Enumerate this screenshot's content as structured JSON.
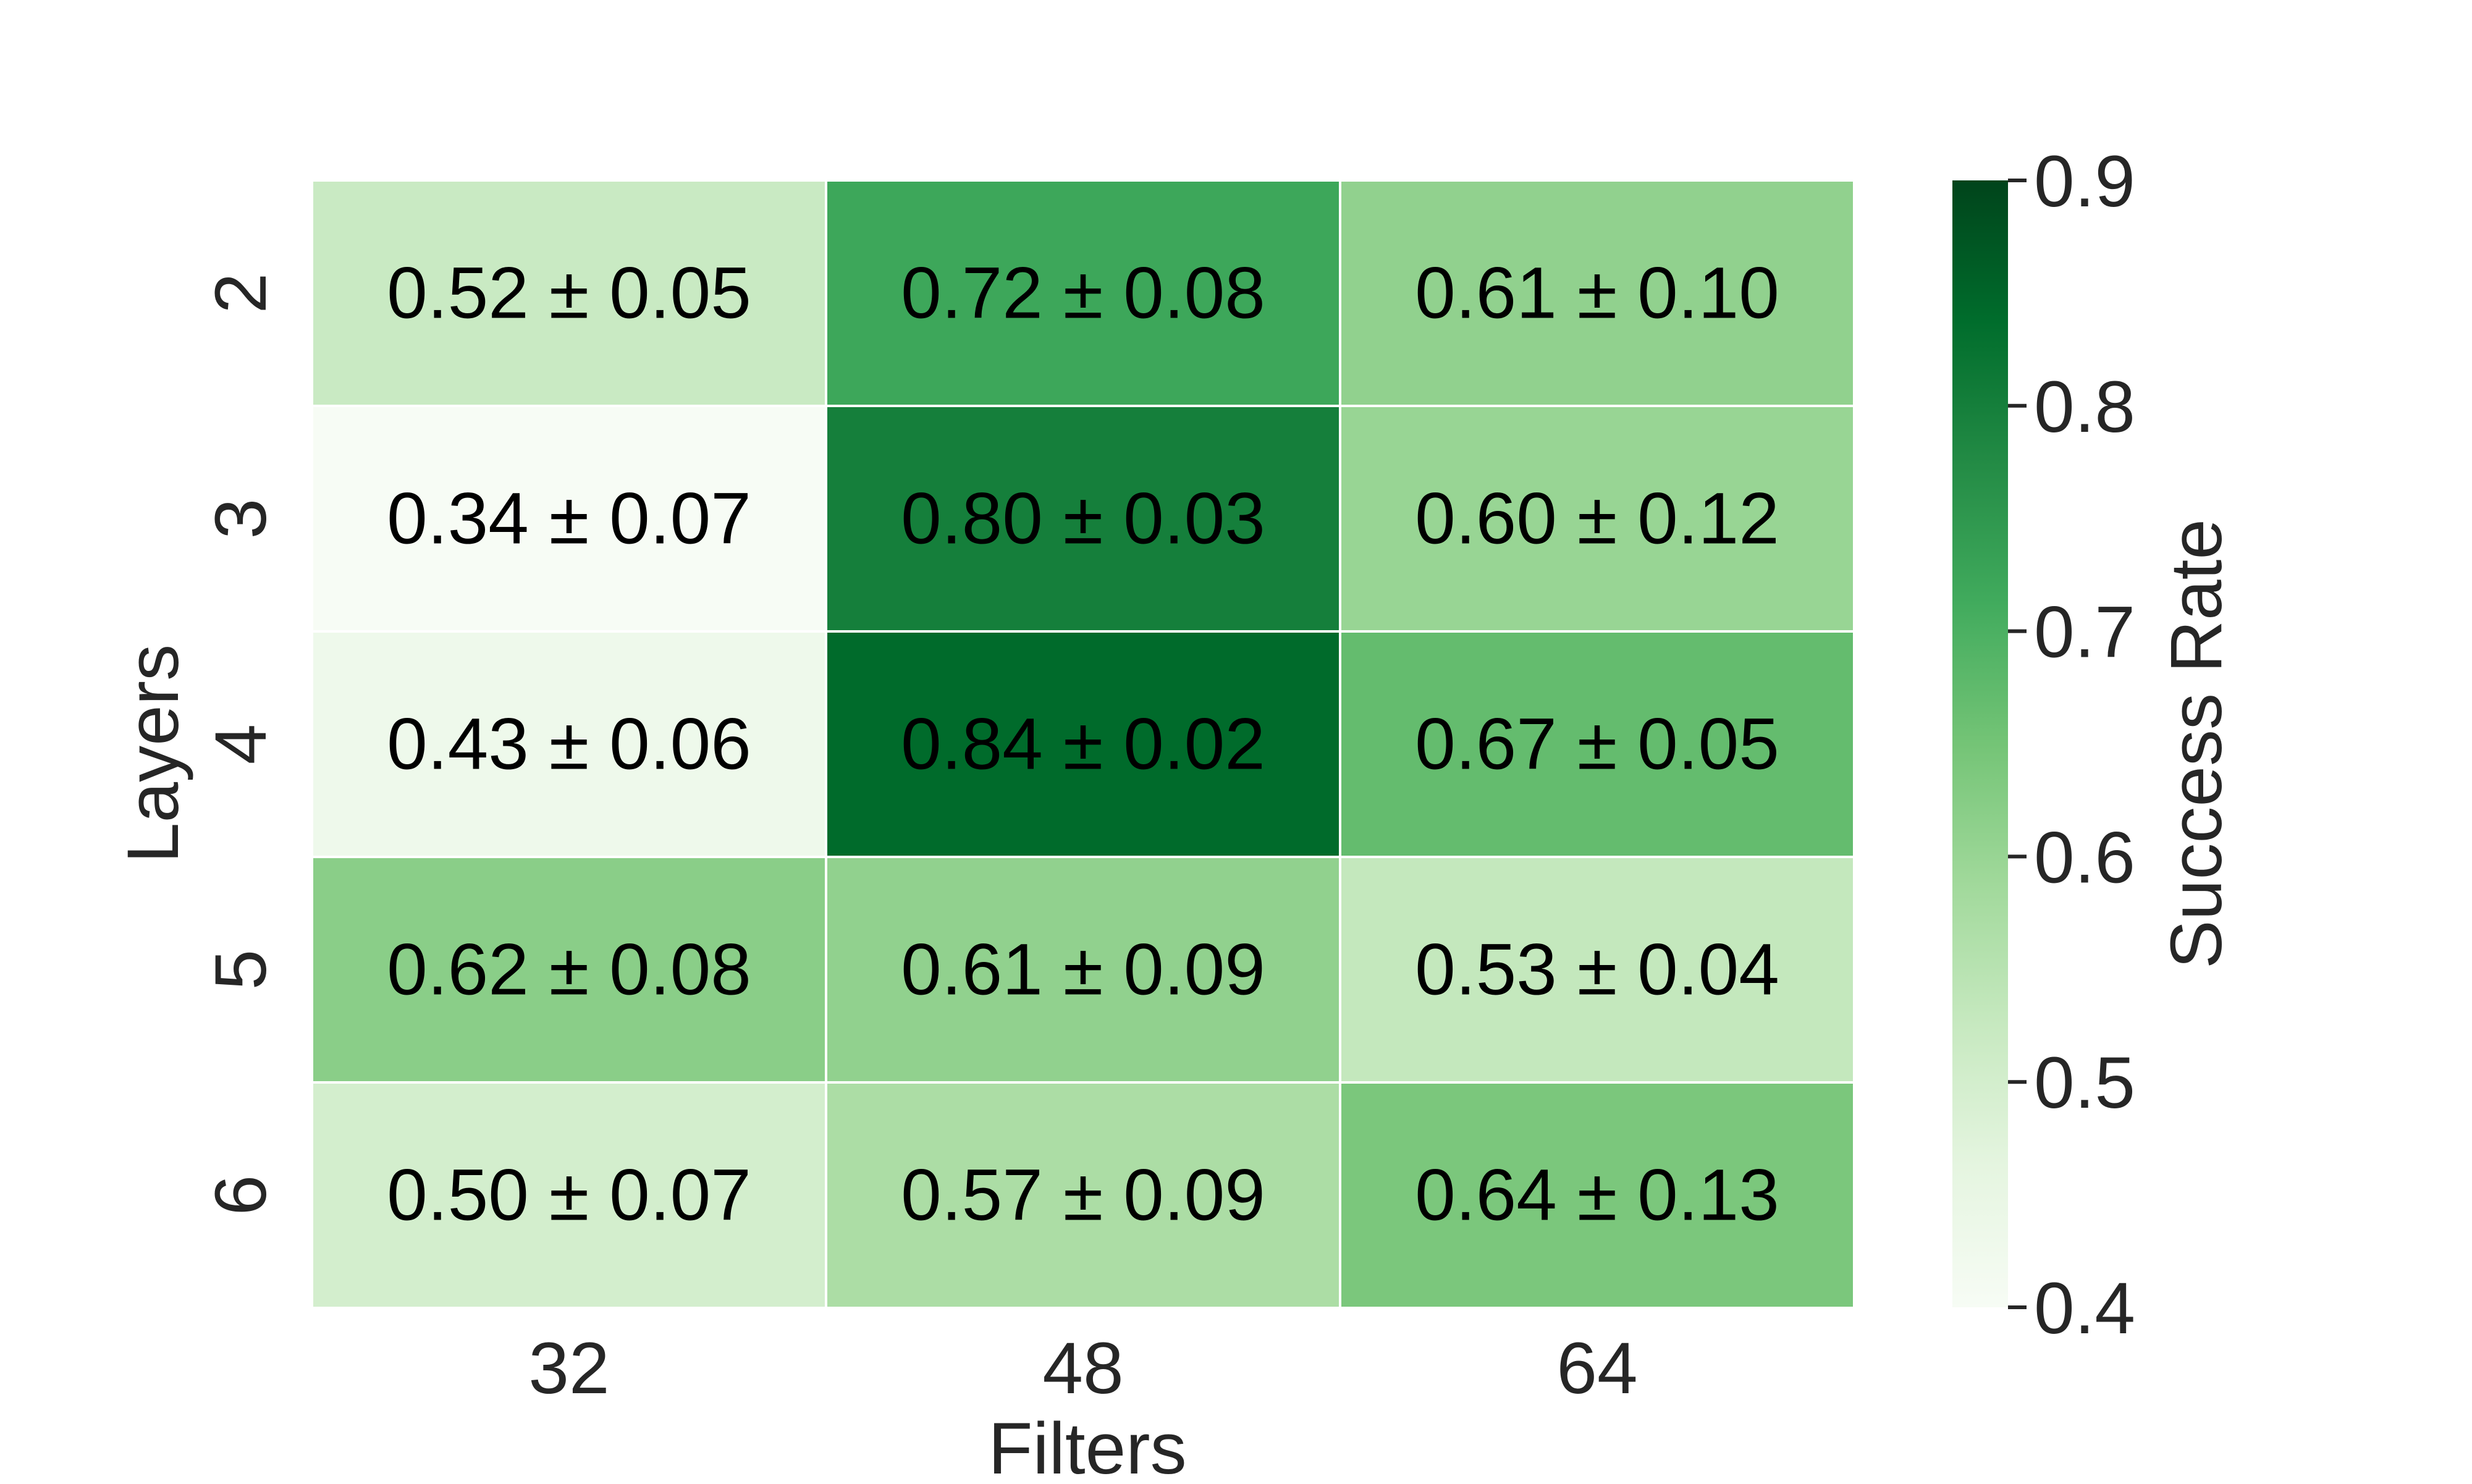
{
  "chart_data": {
    "type": "heatmap",
    "title": "",
    "xlabel": "Filters",
    "ylabel": "Layers",
    "x_categories": [
      "32",
      "48",
      "64"
    ],
    "y_categories": [
      "2",
      "3",
      "4",
      "5",
      "6"
    ],
    "values": [
      [
        0.52,
        0.72,
        0.61
      ],
      [
        0.34,
        0.8,
        0.6
      ],
      [
        0.43,
        0.84,
        0.67
      ],
      [
        0.62,
        0.61,
        0.53
      ],
      [
        0.5,
        0.57,
        0.64
      ]
    ],
    "errors": [
      [
        0.05,
        0.08,
        0.1
      ],
      [
        0.07,
        0.03,
        0.12
      ],
      [
        0.06,
        0.02,
        0.05
      ],
      [
        0.08,
        0.09,
        0.04
      ],
      [
        0.07,
        0.09,
        0.13
      ]
    ],
    "cell_labels": [
      [
        "0.52 ± 0.05",
        "0.72 ± 0.08",
        "0.61 ± 0.10"
      ],
      [
        "0.34 ± 0.07",
        "0.80 ± 0.03",
        "0.60 ± 0.12"
      ],
      [
        "0.43 ± 0.06",
        "0.84 ± 0.02",
        "0.67 ± 0.05"
      ],
      [
        "0.62 ± 0.08",
        "0.61 ± 0.09",
        "0.53 ± 0.04"
      ],
      [
        "0.50 ± 0.07",
        "0.57 ± 0.09",
        "0.64 ± 0.13"
      ]
    ],
    "colorbar": {
      "label": "Success Rate",
      "range": [
        0.4,
        0.9
      ],
      "ticks": [
        "0.4",
        "0.5",
        "0.6",
        "0.7",
        "0.8",
        "0.9"
      ],
      "colormap": "Greens"
    }
  }
}
